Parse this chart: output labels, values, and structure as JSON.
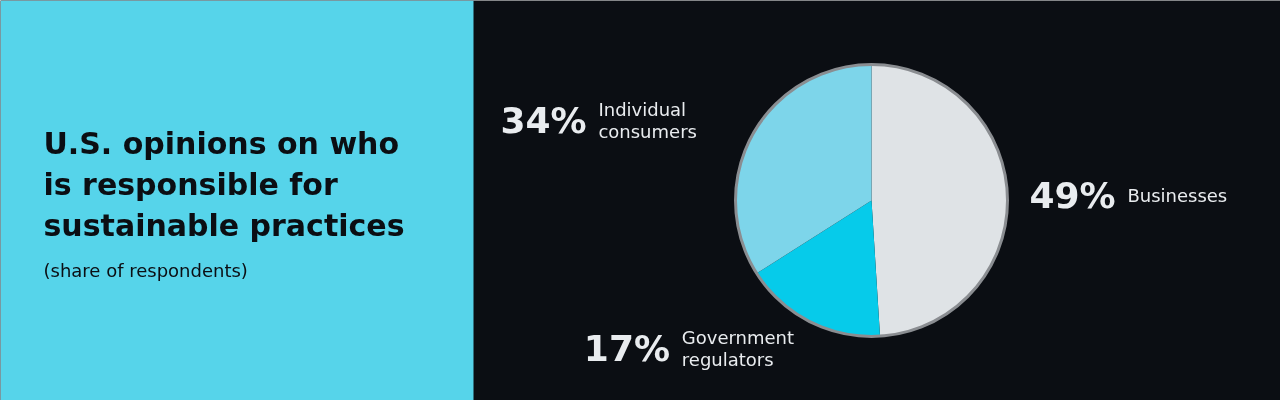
{
  "chart_data": {
    "type": "pie",
    "title": "U.S. opinions on who is responsible for sustainable practices",
    "subtitle": "(share of respondents)",
    "categories": [
      "Businesses",
      "Government regulators",
      "Individual consumers"
    ],
    "values": [
      49,
      17,
      34
    ],
    "colors": [
      "#dfe3e6",
      "#06cbea",
      "#7dd5ea"
    ],
    "value_labels": [
      "49%",
      "17%",
      "34%"
    ]
  }
}
